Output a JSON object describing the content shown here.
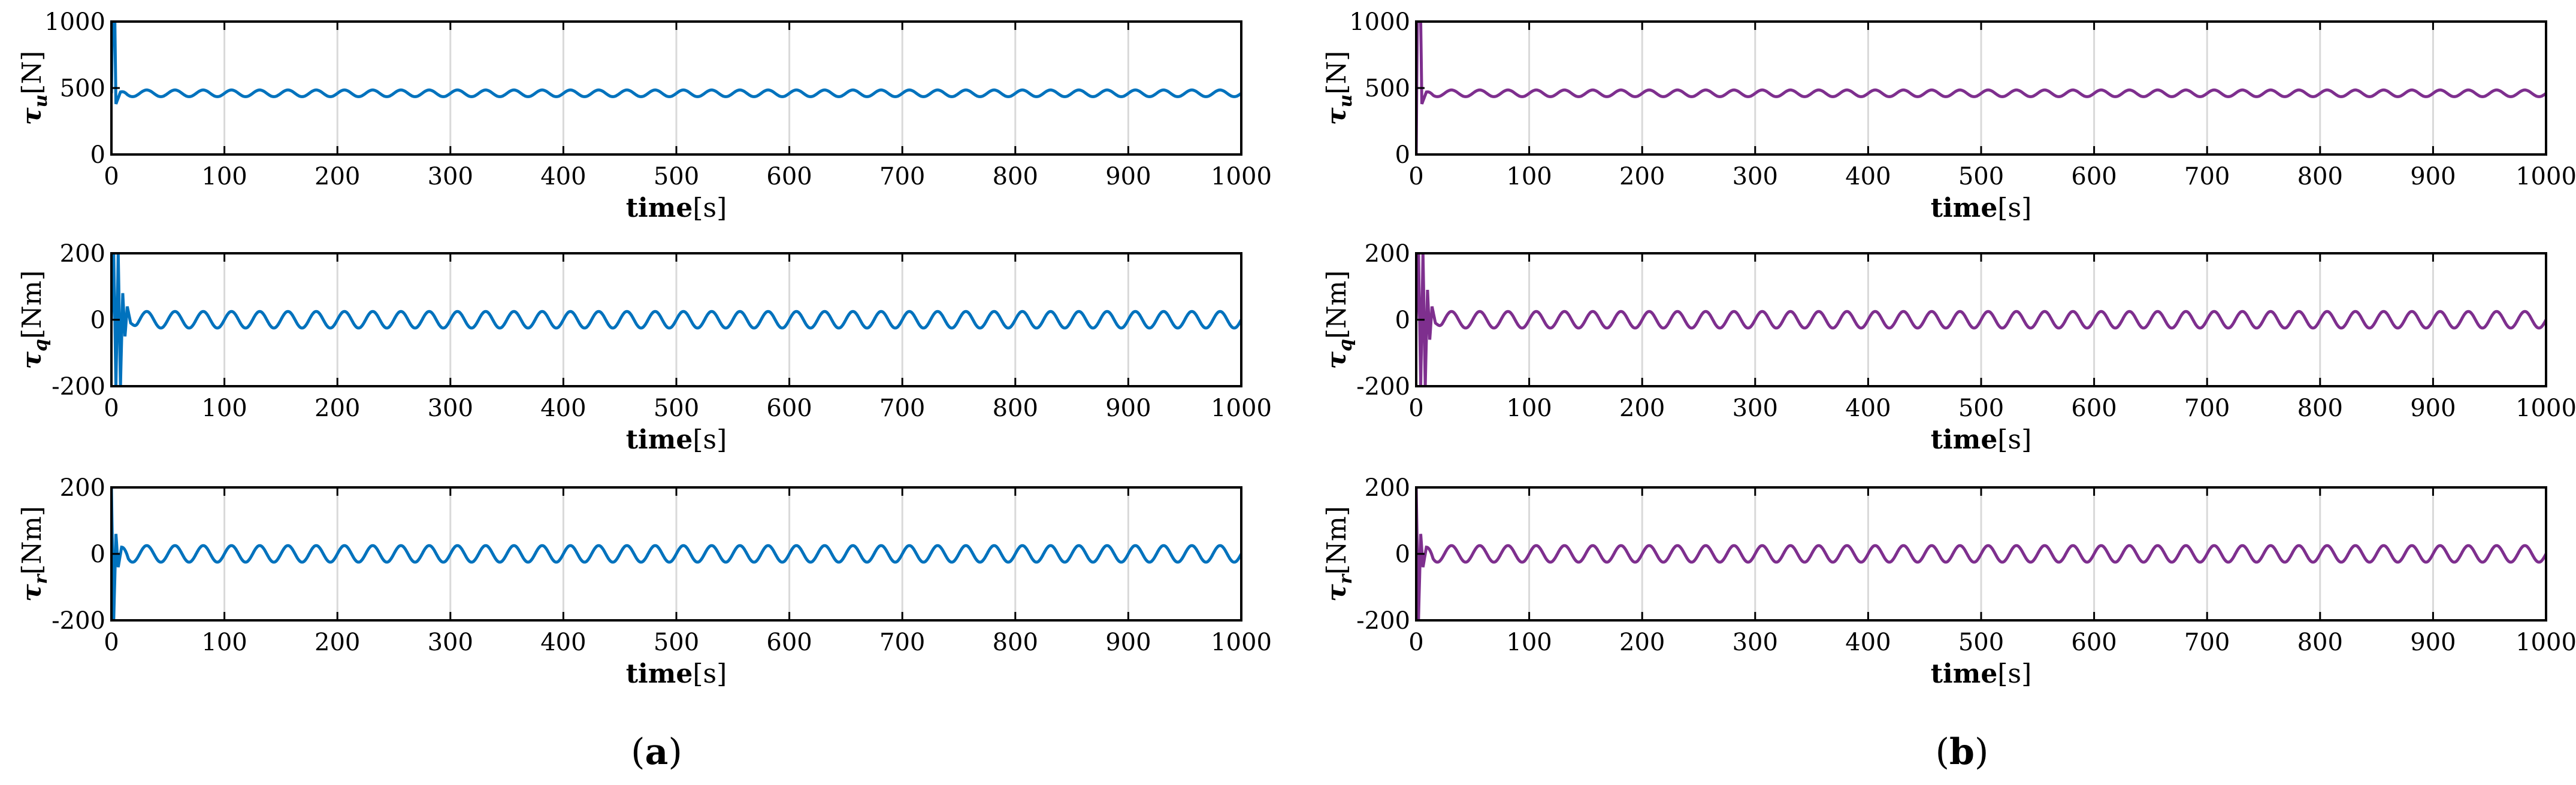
{
  "colors": {
    "panel_a": "#0072BD",
    "panel_b": "#7E2F8E",
    "grid": "#d9d9d9"
  },
  "panels": [
    {
      "caption_open": "(",
      "caption_letter": "a",
      "caption_close": ")",
      "color_key": "panel_a"
    },
    {
      "caption_open": "(",
      "caption_letter": "b",
      "caption_close": ")",
      "color_key": "panel_b"
    }
  ],
  "rows": [
    {
      "ylabel_sym": "τ",
      "ylabel_sub": "u",
      "ylabel_unit": "[N]",
      "xlabel_bold": "time",
      "xlabel_unit": "[s]"
    },
    {
      "ylabel_sym": "τ",
      "ylabel_sub": "q",
      "ylabel_unit": "[Nm]",
      "xlabel_bold": "time",
      "xlabel_unit": "[s]"
    },
    {
      "ylabel_sym": "τ",
      "ylabel_sub": "r",
      "ylabel_unit": "[Nm]",
      "xlabel_bold": "time",
      "xlabel_unit": "[s]"
    }
  ],
  "chart_data": [
    {
      "type": "line",
      "panel": "a",
      "row": 1,
      "color": "#0072BD",
      "xlabel": "time[s]",
      "ylabel": "τu[N]",
      "xlim": [
        0,
        1000
      ],
      "ylim": [
        0,
        1000
      ],
      "xticks": [
        0,
        100,
        200,
        300,
        400,
        500,
        600,
        700,
        800,
        900,
        1000
      ],
      "yticks": [
        0,
        500,
        1000
      ],
      "grid": "x",
      "series": [
        {
          "signal": {
            "mean": 460,
            "amplitude": 25,
            "period_s": 25,
            "transient": [
              [
                0,
                460
              ],
              [
                1,
                1000
              ],
              [
                3,
                1000
              ],
              [
                4,
                380
              ],
              [
                8,
                470
              ]
            ]
          }
        }
      ]
    },
    {
      "type": "line",
      "panel": "a",
      "row": 2,
      "color": "#0072BD",
      "xlabel": "time[s]",
      "ylabel": "τq[Nm]",
      "xlim": [
        0,
        1000
      ],
      "ylim": [
        -200,
        200
      ],
      "xticks": [
        0,
        100,
        200,
        300,
        400,
        500,
        600,
        700,
        800,
        900,
        1000
      ],
      "yticks": [
        -200,
        0,
        200
      ],
      "grid": "x",
      "series": [
        {
          "signal": {
            "mean": 0,
            "amplitude": 25,
            "period_s": 25,
            "transient": [
              [
                0,
                0
              ],
              [
                2,
                200
              ],
              [
                4,
                -200
              ],
              [
                6,
                200
              ],
              [
                8,
                -200
              ],
              [
                10,
                80
              ],
              [
                12,
                -50
              ],
              [
                14,
                40
              ],
              [
                17,
                -10
              ]
            ]
          }
        }
      ]
    },
    {
      "type": "line",
      "panel": "a",
      "row": 3,
      "color": "#0072BD",
      "xlabel": "time[s]",
      "ylabel": "τr[Nm]",
      "xlim": [
        0,
        1000
      ],
      "ylim": [
        -200,
        200
      ],
      "xticks": [
        0,
        100,
        200,
        300,
        400,
        500,
        600,
        700,
        800,
        900,
        1000
      ],
      "yticks": [
        -200,
        0,
        200
      ],
      "grid": "x",
      "series": [
        {
          "signal": {
            "mean": 0,
            "amplitude": 25,
            "period_s": 25,
            "transient": [
              [
                0,
                200
              ],
              [
                2,
                -200
              ],
              [
                4,
                60
              ],
              [
                6,
                -40
              ],
              [
                9,
                20
              ]
            ]
          }
        }
      ]
    },
    {
      "type": "line",
      "panel": "b",
      "row": 1,
      "color": "#7E2F8E",
      "xlabel": "time[s]",
      "ylabel": "τu[N]",
      "xlim": [
        0,
        1000
      ],
      "ylim": [
        0,
        1000
      ],
      "xticks": [
        0,
        100,
        200,
        300,
        400,
        500,
        600,
        700,
        800,
        900,
        1000
      ],
      "yticks": [
        0,
        500,
        1000
      ],
      "grid": "x",
      "series": [
        {
          "signal": {
            "mean": 460,
            "amplitude": 25,
            "period_s": 25,
            "transient": [
              [
                0,
                0
              ],
              [
                1,
                1000
              ],
              [
                4,
                1000
              ],
              [
                5,
                380
              ],
              [
                9,
                470
              ]
            ]
          }
        }
      ]
    },
    {
      "type": "line",
      "panel": "b",
      "row": 2,
      "color": "#7E2F8E",
      "xlabel": "time[s]",
      "ylabel": "τq[Nm]",
      "xlim": [
        0,
        1000
      ],
      "ylim": [
        -200,
        200
      ],
      "xticks": [
        0,
        100,
        200,
        300,
        400,
        500,
        600,
        700,
        800,
        900,
        1000
      ],
      "yticks": [
        -200,
        0,
        200
      ],
      "grid": "x",
      "series": [
        {
          "signal": {
            "mean": 0,
            "amplitude": 25,
            "period_s": 25,
            "transient": [
              [
                0,
                0
              ],
              [
                2,
                200
              ],
              [
                4,
                -200
              ],
              [
                6,
                200
              ],
              [
                8,
                -200
              ],
              [
                10,
                90
              ],
              [
                12,
                -60
              ],
              [
                14,
                40
              ],
              [
                17,
                -10
              ]
            ]
          }
        }
      ]
    },
    {
      "type": "line",
      "panel": "b",
      "row": 3,
      "color": "#7E2F8E",
      "xlabel": "time[s]",
      "ylabel": "τr[Nm]",
      "xlim": [
        0,
        1000
      ],
      "ylim": [
        -200,
        200
      ],
      "xticks": [
        0,
        100,
        200,
        300,
        400,
        500,
        600,
        700,
        800,
        900,
        1000
      ],
      "yticks": [
        -200,
        0,
        200
      ],
      "grid": "x",
      "series": [
        {
          "signal": {
            "mean": 0,
            "amplitude": 25,
            "period_s": 25,
            "transient": [
              [
                0,
                200
              ],
              [
                2,
                -200
              ],
              [
                4,
                60
              ],
              [
                6,
                -40
              ],
              [
                9,
                20
              ]
            ]
          }
        }
      ]
    }
  ]
}
